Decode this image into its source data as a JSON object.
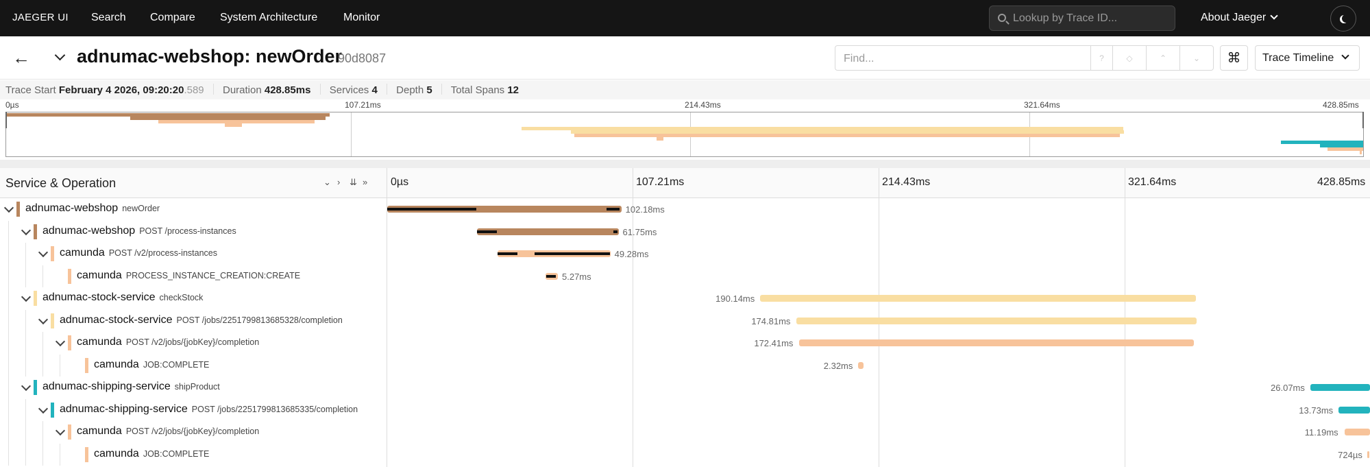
{
  "topnav": {
    "brand": "JAEGER UI",
    "links": [
      "Search",
      "Compare",
      "System Architecture",
      "Monitor"
    ],
    "lookup_placeholder": "Lookup by Trace ID...",
    "about": "About Jaeger"
  },
  "header": {
    "title": "adnumac-webshop: newOrder",
    "trace_id": "90d8087",
    "find_placeholder": "Find...",
    "find_help": "?",
    "view_mode": "Trace Timeline"
  },
  "meta": {
    "trace_start_label": "Trace Start",
    "trace_start_value": "February 4 2026, 09:20:20",
    "trace_start_ms": ".589",
    "duration_label": "Duration",
    "duration_value": "428.85ms",
    "services_label": "Services",
    "services_value": "4",
    "depth_label": "Depth",
    "depth_value": "5",
    "total_spans_label": "Total Spans",
    "total_spans_value": "12"
  },
  "timeline": {
    "total_ms": 428.85,
    "ticks": [
      "0µs",
      "107.21ms",
      "214.43ms",
      "321.64ms",
      "428.85ms"
    ],
    "column_title": "Service & Operation"
  },
  "colors": {
    "webshop": "#b8865e",
    "camunda": "#f7c39a",
    "stock": "#f9dea2",
    "shipping": "#22b3bd"
  },
  "spans": [
    {
      "service": "adnumac-webshop",
      "operation": "newOrder",
      "depth": 0,
      "color": "#b8865e",
      "start_ms": 0,
      "duration_ms": 102.18,
      "duration": "102.18ms",
      "expanded": true
    },
    {
      "service": "adnumac-webshop",
      "operation": "POST /process-instances",
      "depth": 1,
      "color": "#b8865e",
      "start_ms": 39.2,
      "duration_ms": 61.75,
      "duration": "61.75ms",
      "expanded": true
    },
    {
      "service": "camunda",
      "operation": "POST /v2/process-instances",
      "depth": 2,
      "color": "#f7c39a",
      "start_ms": 48.1,
      "duration_ms": 49.28,
      "duration": "49.28ms",
      "expanded": true
    },
    {
      "service": "camunda",
      "operation": "PROCESS_INSTANCE_CREATION:CREATE",
      "depth": 3,
      "color": "#f7c39a",
      "start_ms": 69.2,
      "duration_ms": 5.27,
      "duration": "5.27ms",
      "expanded": null
    },
    {
      "service": "adnumac-stock-service",
      "operation": "checkStock",
      "depth": 1,
      "color": "#f9dea2",
      "start_ms": 162.8,
      "duration_ms": 190.14,
      "duration": "190.14ms",
      "expanded": true
    },
    {
      "service": "adnumac-stock-service",
      "operation": "POST /jobs/2251799813685328/completion",
      "depth": 2,
      "color": "#f9dea2",
      "start_ms": 178.4,
      "duration_ms": 174.81,
      "duration": "174.81ms",
      "expanded": true
    },
    {
      "service": "camunda",
      "operation": "POST /v2/jobs/{jobKey}/completion",
      "depth": 3,
      "color": "#f7c39a",
      "start_ms": 179.6,
      "duration_ms": 172.41,
      "duration": "172.41ms",
      "expanded": true
    },
    {
      "service": "camunda",
      "operation": "JOB:COMPLETE",
      "depth": 4,
      "color": "#f7c39a",
      "start_ms": 205.5,
      "duration_ms": 2.32,
      "duration": "2.32ms",
      "expanded": null
    },
    {
      "service": "adnumac-shipping-service",
      "operation": "shipProduct",
      "depth": 1,
      "color": "#22b3bd",
      "start_ms": 402.78,
      "duration_ms": 26.07,
      "duration": "26.07ms",
      "expanded": true
    },
    {
      "service": "adnumac-shipping-service",
      "operation": "POST /jobs/2251799813685335/completion",
      "depth": 2,
      "color": "#22b3bd",
      "start_ms": 415.12,
      "duration_ms": 13.73,
      "duration": "13.73ms",
      "expanded": true
    },
    {
      "service": "camunda",
      "operation": "POST /v2/jobs/{jobKey}/completion",
      "depth": 3,
      "color": "#f7c39a",
      "start_ms": 417.66,
      "duration_ms": 11.19,
      "duration": "11.19ms",
      "expanded": true
    },
    {
      "service": "camunda",
      "operation": "JOB:COMPLETE",
      "depth": 4,
      "color": "#f7c39a",
      "start_ms": 427.7,
      "duration_ms": 0.724,
      "duration": "724µs",
      "expanded": null
    }
  ]
}
